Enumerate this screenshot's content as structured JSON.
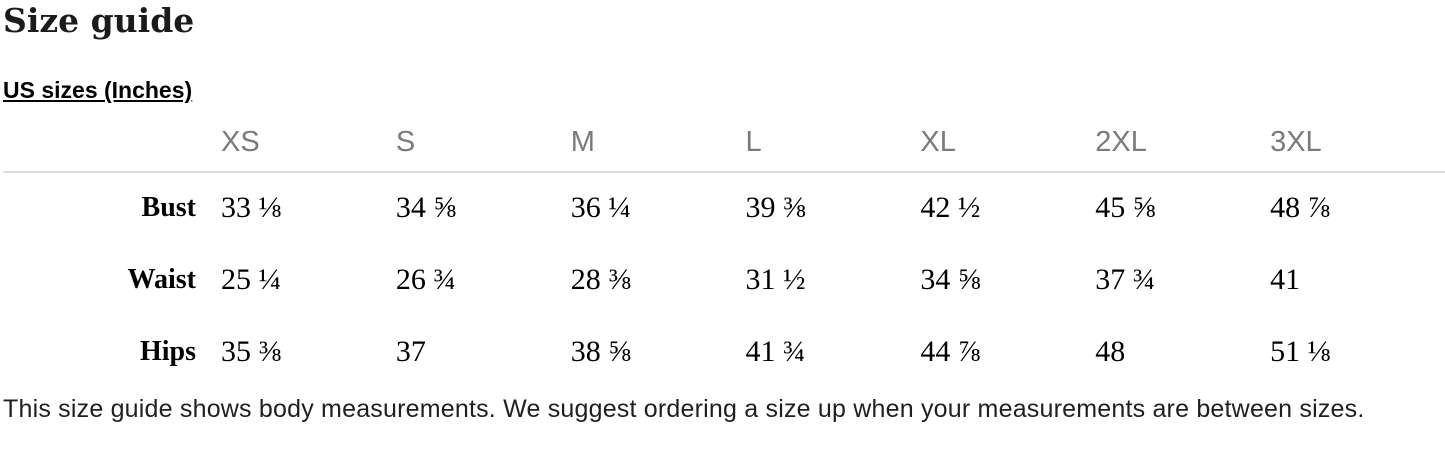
{
  "page": {
    "title": "Size guide",
    "section_heading": "US sizes (Inches)",
    "footer_note": "This size guide shows body measurements. We suggest ordering a size up when your measurements are between sizes."
  },
  "size_table": {
    "columns": [
      "XS",
      "S",
      "M",
      "L",
      "XL",
      "2XL",
      "3XL"
    ],
    "rows": [
      {
        "label": "Bust",
        "values": [
          "33 ⅛",
          "34 ⅝",
          "36 ¼",
          "39 ⅜",
          "42 ½",
          "45 ⅝",
          "48 ⅞"
        ]
      },
      {
        "label": "Waist",
        "values": [
          "25 ¼",
          "26 ¾",
          "28 ⅜",
          "31 ½",
          "34 ⅝",
          "37 ¾",
          "41"
        ]
      },
      {
        "label": "Hips",
        "values": [
          "35 ⅜",
          "37",
          "38 ⅝",
          "41 ¾",
          "44 ⅞",
          "48",
          "51 ⅛"
        ]
      }
    ]
  },
  "colors": {
    "header_text": "#7b7b7b",
    "divider": "#dddddd",
    "body_text": "#000000",
    "title_text": "#1b1b1b",
    "background": "#ffffff"
  }
}
